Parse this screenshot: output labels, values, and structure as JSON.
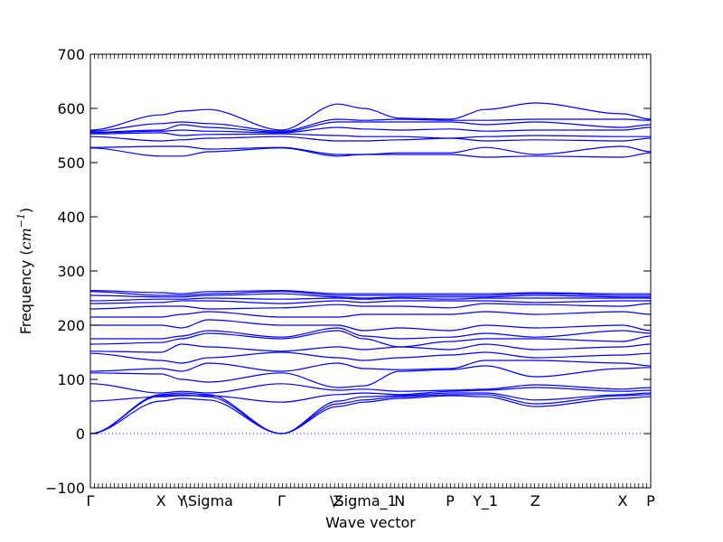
{
  "chart_data": {
    "type": "line",
    "title": "",
    "xlabel": "Wave vector",
    "ylabel": "Frequency",
    "ylabel_unit": "cm",
    "ylabel_unit_exp": "−1",
    "ylim": [
      -100,
      700
    ],
    "yticks": [
      -100,
      0,
      100,
      200,
      300,
      400,
      500,
      600,
      700
    ],
    "xlim": [
      0,
      1
    ],
    "high_symmetry_points": [
      {
        "label": "Γ",
        "x": 0.0
      },
      {
        "label": "X",
        "x": 0.126
      },
      {
        "label": "Y",
        "x": 0.163
      },
      {
        "label": "\\Sigma",
        "x": 0.21
      },
      {
        "label": "Γ",
        "x": 0.341
      },
      {
        "label": "Z",
        "x": 0.442
      },
      {
        "label": "\\Sigma_1",
        "x": 0.487
      },
      {
        "label": "N",
        "x": 0.552
      },
      {
        "label": "P",
        "x": 0.642
      },
      {
        "label": "Y_1",
        "x": 0.705
      },
      {
        "label": "Z",
        "x": 0.794
      },
      {
        "label": "X",
        "x": 0.95
      },
      {
        "label": "P",
        "x": 1.0
      }
    ],
    "grid": false,
    "zero_line": true,
    "line_color": "#0000ff",
    "series": [
      {
        "values": [
          0,
          60,
          65,
          62,
          0,
          50,
          58,
          65,
          70,
          68,
          50,
          65,
          68
        ]
      },
      {
        "values": [
          0,
          70,
          72,
          68,
          0,
          55,
          62,
          68,
          72,
          72,
          55,
          70,
          72
        ]
      },
      {
        "values": [
          0,
          72,
          75,
          72,
          0,
          60,
          68,
          70,
          75,
          75,
          62,
          72,
          75
        ]
      },
      {
        "values": [
          60,
          68,
          70,
          70,
          58,
          72,
          75,
          72,
          78,
          80,
          85,
          78,
          80
        ]
      },
      {
        "values": [
          92,
          75,
          78,
          75,
          92,
          80,
          82,
          78,
          80,
          82,
          90,
          82,
          85
        ]
      },
      {
        "values": [
          112,
          110,
          100,
          95,
          112,
          85,
          88,
          115,
          118,
          125,
          105,
          120,
          122
        ]
      },
      {
        "values": [
          115,
          120,
          115,
          130,
          115,
          130,
          120,
          118,
          120,
          135,
          135,
          130,
          125
        ]
      },
      {
        "values": [
          148,
          135,
          130,
          140,
          150,
          140,
          135,
          140,
          145,
          150,
          140,
          145,
          148
        ]
      },
      {
        "values": [
          152,
          150,
          165,
          160,
          152,
          160,
          155,
          160,
          155,
          165,
          155,
          160,
          165
        ]
      },
      {
        "values": [
          165,
          168,
          175,
          185,
          175,
          190,
          175,
          160,
          170,
          175,
          175,
          170,
          180
        ]
      },
      {
        "values": [
          175,
          175,
          180,
          190,
          178,
          195,
          180,
          175,
          178,
          185,
          178,
          190,
          185
        ]
      },
      {
        "values": [
          200,
          200,
          195,
          210,
          200,
          200,
          190,
          195,
          190,
          200,
          195,
          200,
          190
        ]
      },
      {
        "values": [
          215,
          215,
          220,
          225,
          215,
          215,
          220,
          220,
          220,
          225,
          220,
          225,
          220
        ]
      },
      {
        "values": [
          230,
          235,
          235,
          230,
          232,
          238,
          235,
          235,
          232,
          240,
          238,
          235,
          240
        ]
      },
      {
        "values": [
          240,
          242,
          245,
          245,
          240,
          245,
          242,
          245,
          245,
          245,
          242,
          245,
          245
        ]
      },
      {
        "values": [
          245,
          248,
          248,
          250,
          248,
          250,
          248,
          250,
          248,
          250,
          250,
          250,
          250
        ]
      },
      {
        "values": [
          255,
          252,
          252,
          255,
          258,
          252,
          250,
          252,
          252,
          252,
          255,
          252,
          252
        ]
      },
      {
        "values": [
          262,
          255,
          255,
          258,
          262,
          255,
          255,
          255,
          255,
          255,
          258,
          255,
          255
        ]
      },
      {
        "values": [
          264,
          260,
          258,
          262,
          264,
          258,
          258,
          258,
          258,
          258,
          260,
          258,
          258
        ]
      },
      {
        "values": [
          527,
          512,
          512,
          520,
          527,
          512,
          515,
          515,
          515,
          510,
          512,
          510,
          518
        ]
      },
      {
        "values": [
          528,
          530,
          530,
          525,
          528,
          515,
          515,
          518,
          518,
          528,
          515,
          530,
          520
        ]
      },
      {
        "values": [
          548,
          540,
          542,
          545,
          548,
          540,
          540,
          542,
          545,
          540,
          542,
          540,
          545
        ]
      },
      {
        "values": [
          553,
          555,
          550,
          552,
          553,
          550,
          548,
          548,
          545,
          548,
          550,
          548,
          548
        ]
      },
      {
        "values": [
          555,
          558,
          560,
          558,
          555,
          565,
          562,
          560,
          562,
          558,
          560,
          560,
          565
        ]
      },
      {
        "values": [
          556,
          560,
          570,
          565,
          556,
          575,
          575,
          575,
          575,
          570,
          575,
          565,
          570
        ]
      },
      {
        "values": [
          558,
          572,
          575,
          572,
          558,
          580,
          578,
          580,
          578,
          578,
          580,
          580,
          578
        ]
      },
      {
        "values": [
          560,
          588,
          595,
          598,
          560,
          608,
          600,
          582,
          580,
          598,
          610,
          590,
          580
        ]
      }
    ]
  }
}
